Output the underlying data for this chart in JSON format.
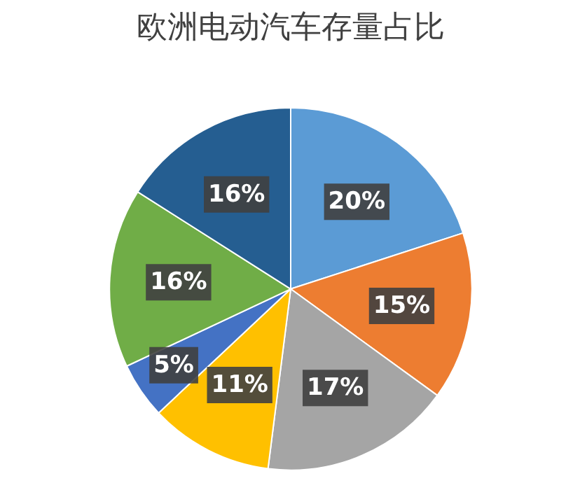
{
  "chart_data": {
    "type": "pie",
    "title": "欧洲电动汽车存量占比",
    "categories": [
      null,
      null,
      null,
      null,
      null,
      null,
      null
    ],
    "values": [
      20,
      15,
      17,
      11,
      5,
      16,
      16
    ],
    "colors": [
      "#5b9bd5",
      "#ed7d31",
      "#a5a5a5",
      "#ffc000",
      "#4472c4",
      "#70ad47",
      "#255e91"
    ],
    "value_labels": [
      "20%",
      "15%",
      "17%",
      "11%",
      "5%",
      "16%",
      "16%"
    ]
  }
}
